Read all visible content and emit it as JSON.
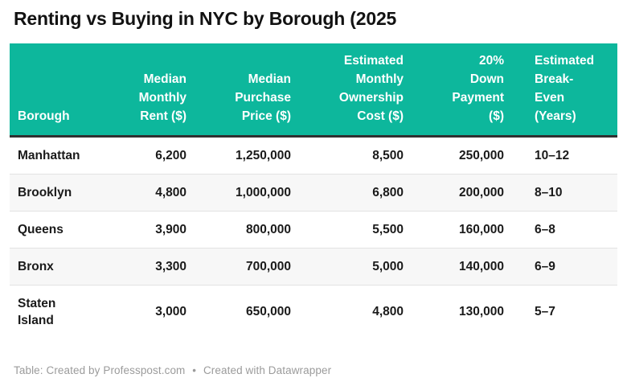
{
  "title": "Renting vs Buying in NYC by Borough (2025",
  "colors": {
    "header_bg": "#0db79c",
    "header_text": "#ffffff",
    "header_border": "#303030",
    "stripe": "#f7f7f7",
    "row_border": "#e2e2e2",
    "text": "#1a1a1a",
    "footer_text": "#9b9b9b"
  },
  "table": {
    "columns": [
      {
        "key": "borough",
        "label": "Borough",
        "align": "left"
      },
      {
        "key": "rent",
        "label": "Median\nMonthly\nRent ($)",
        "align": "right"
      },
      {
        "key": "price",
        "label": "Median\nPurchase\nPrice ($)",
        "align": "right"
      },
      {
        "key": "ownership",
        "label": "Estimated\nMonthly\nOwnership\nCost ($)",
        "align": "right"
      },
      {
        "key": "down",
        "label": "20%\nDown\nPayment\n($)",
        "align": "right"
      },
      {
        "key": "breakeven",
        "label": "Estimated\nBreak-\nEven\n(Years)",
        "align": "left"
      }
    ],
    "rows": [
      [
        "Manhattan",
        "6,200",
        "1,250,000",
        "8,500",
        "250,000",
        "10–12"
      ],
      [
        "Brooklyn",
        "4,800",
        "1,000,000",
        "6,800",
        "200,000",
        "8–10"
      ],
      [
        "Queens",
        "3,900",
        "800,000",
        "5,500",
        "160,000",
        "6–8"
      ],
      [
        "Bronx",
        "3,300",
        "700,000",
        "5,000",
        "140,000",
        "6–9"
      ],
      [
        "Staten\nIsland",
        "3,000",
        "650,000",
        "4,800",
        "130,000",
        "5–7"
      ]
    ]
  },
  "footer": {
    "prefix": "Table: Created by Professpost.com",
    "separator": "•",
    "credit": "Created with Datawrapper"
  },
  "chart_data": {
    "type": "table",
    "title": "Renting vs Buying in NYC by Borough (2025",
    "columns": [
      "Borough",
      "Median Monthly Rent ($)",
      "Median Purchase Price ($)",
      "Estimated Monthly Ownership Cost ($)",
      "20% Down Payment ($)",
      "Estimated Break-Even (Years)"
    ],
    "rows": [
      [
        "Manhattan",
        6200,
        1250000,
        8500,
        250000,
        "10–12"
      ],
      [
        "Brooklyn",
        4800,
        1000000,
        6800,
        200000,
        "8–10"
      ],
      [
        "Queens",
        3900,
        800000,
        5500,
        160000,
        "6–8"
      ],
      [
        "Bronx",
        3300,
        700000,
        5000,
        140000,
        "6–9"
      ],
      [
        "Staten Island",
        3000,
        650000,
        4800,
        130000,
        "5–7"
      ]
    ]
  }
}
